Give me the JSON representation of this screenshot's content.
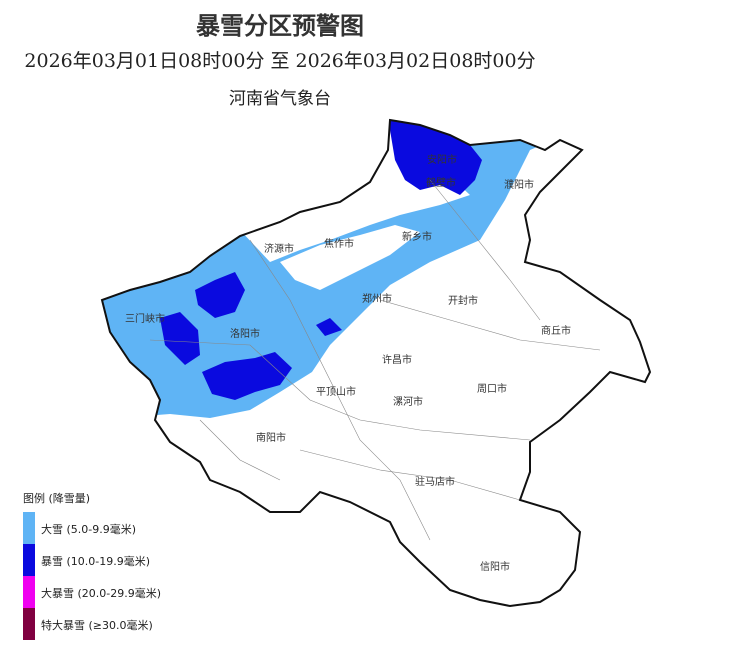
{
  "header": {
    "title": "暴雪分区预警图",
    "period": "2026年03月01日08时00分 至 2026年03月02日08时00分",
    "issuer": "河南省气象台"
  },
  "cities": [
    "安阳市",
    "鹤壁市",
    "濮阳市",
    "济源市",
    "焦作市",
    "新乡市",
    "郑州市",
    "开封市",
    "三门峡市",
    "洛阳市",
    "商丘市",
    "许昌市",
    "平顶山市",
    "漯河市",
    "周口市",
    "南阳市",
    "驻马店市",
    "信阳市"
  ],
  "legend": {
    "title": "图例 (降雪量)",
    "items": [
      {
        "label": "大雪 (5.0-9.9毫米)",
        "color": "#5fb4f5"
      },
      {
        "label": "暴雪 (10.0-19.9毫米)",
        "color": "#0a0adf"
      },
      {
        "label": "大暴雪 (20.0-29.9毫米)",
        "color": "#f000f0"
      },
      {
        "label": "特大暴雪 (≥30.0毫米)",
        "color": "#800040"
      }
    ]
  }
}
